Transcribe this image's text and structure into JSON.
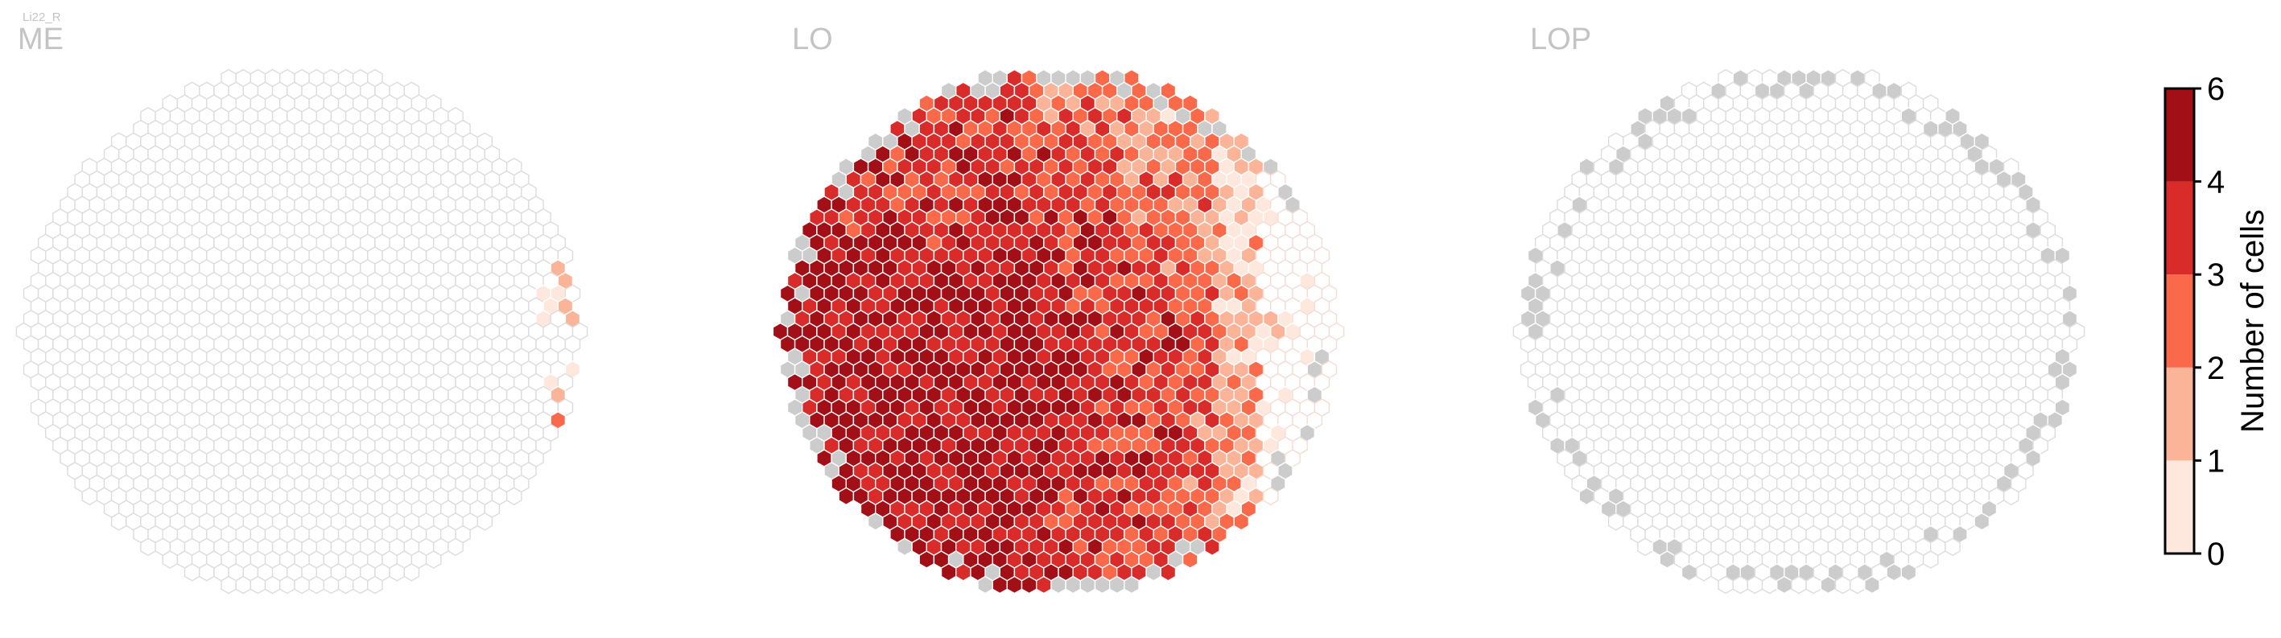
{
  "figure": {
    "tag": "Li22_R",
    "panels": [
      {
        "name": "ME",
        "label": "ME"
      },
      {
        "name": "LO",
        "label": "LO"
      },
      {
        "name": "LOP",
        "label": "LOP"
      }
    ]
  },
  "chart_data": {
    "type": "heatmap",
    "subtype": "hexagonal-column-map",
    "panels": [
      "ME",
      "LO",
      "LOP"
    ],
    "colorbar": {
      "label": "Number of cells",
      "ticks": [
        0,
        1,
        2,
        3,
        4,
        6
      ],
      "bins": [
        {
          "range": "0-1",
          "color": "#fee8de"
        },
        {
          "range": "1-2",
          "color": "#fcb499"
        },
        {
          "range": "2-3",
          "color": "#f9694a"
        },
        {
          "range": "3-4",
          "color": "#d92c2a"
        },
        {
          "range": "4-6",
          "color": "#a20f17"
        }
      ]
    },
    "colors": {
      "empty_outline": "#dcdcdc",
      "no_column": "#cccccc",
      "label_gray": "#c4c4c4"
    },
    "summary": {
      "ME": "almost all columns empty; a few columns on the right edge with 0-2 cells",
      "LO": "most columns filled; highest counts (4-6) in the centre-left, low counts (0-1) toward the right edge",
      "LOP": "all columns empty; gray missing columns around the rim"
    }
  }
}
